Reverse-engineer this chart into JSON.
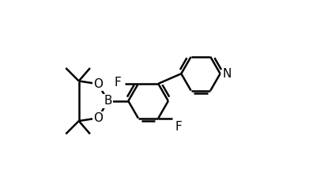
{
  "background_color": "#ffffff",
  "line_color": "#000000",
  "line_width": 1.8,
  "font_size": 11,
  "figsize": [
    3.91,
    2.24
  ],
  "dpi": 100,
  "xlim": [
    0.0,
    10.5
  ],
  "ylim": [
    0.5,
    7.5
  ]
}
